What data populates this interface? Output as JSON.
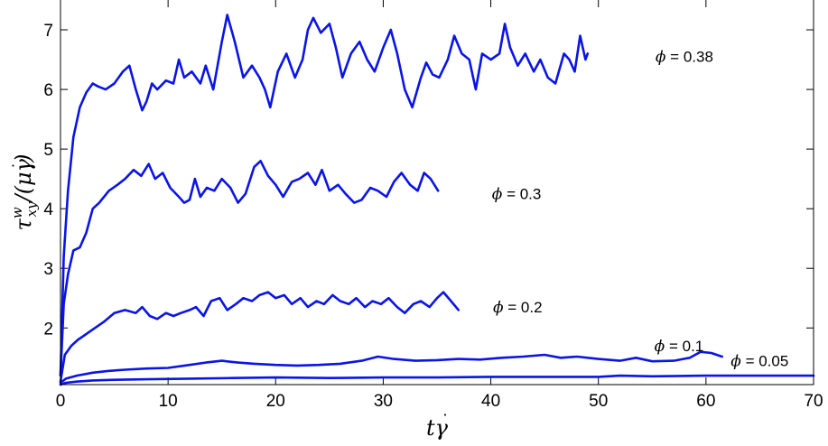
{
  "chart_data": {
    "type": "line",
    "xlabel": "tγ̇",
    "ylabel": "τ^w_xy/(μγ̇)",
    "xlim": [
      0,
      70
    ],
    "ylim": [
      1.05,
      7.5
    ],
    "xticks": [
      0,
      10,
      20,
      30,
      40,
      50,
      60,
      70
    ],
    "yticks": [
      2,
      3,
      4,
      5,
      6,
      7
    ],
    "grid": false,
    "line_color": "#0a14e6",
    "series": [
      {
        "name": "ϕ = 0.38",
        "label_pos": [
          55.3,
          6.55
        ],
        "x": [
          0,
          0.3,
          0.7,
          1.2,
          1.8,
          2.4,
          3,
          3.5,
          4.2,
          5,
          5.8,
          6.4,
          7,
          7.6,
          8,
          8.5,
          9,
          9.8,
          10.5,
          11,
          11.5,
          12.2,
          13,
          13.5,
          14.2,
          15,
          15.5,
          16.2,
          17,
          17.8,
          18.5,
          19,
          19.5,
          20.2,
          21,
          21.8,
          22.5,
          23,
          23.5,
          24.2,
          25,
          25.6,
          26.2,
          27,
          27.8,
          28.5,
          29.2,
          30,
          30.7,
          31.3,
          32,
          32.7,
          33.5,
          34,
          34.6,
          35.2,
          36,
          36.6,
          37.3,
          38,
          38.6,
          39.2,
          40,
          40.8,
          41.3,
          41.8,
          42.5,
          43.2,
          44,
          44.6,
          45.3,
          46,
          46.8,
          47.3,
          47.8,
          48.3,
          48.8,
          49
        ],
        "y": [
          1.2,
          3.2,
          4.3,
          5.2,
          5.7,
          5.95,
          6.1,
          6.05,
          6.0,
          6.1,
          6.3,
          6.4,
          6.0,
          5.65,
          5.8,
          6.1,
          6.0,
          6.15,
          6.1,
          6.5,
          6.2,
          6.3,
          6.1,
          6.4,
          6.0,
          6.8,
          7.25,
          6.8,
          6.2,
          6.4,
          6.2,
          6.0,
          5.7,
          6.3,
          6.6,
          6.2,
          6.5,
          7.0,
          7.2,
          6.95,
          7.1,
          6.7,
          6.2,
          6.6,
          6.8,
          6.5,
          6.3,
          6.7,
          7.0,
          6.6,
          6.0,
          5.7,
          6.2,
          6.45,
          6.25,
          6.2,
          6.5,
          6.9,
          6.6,
          6.5,
          6.0,
          6.6,
          6.5,
          6.6,
          7.1,
          6.7,
          6.4,
          6.6,
          6.3,
          6.5,
          6.2,
          6.1,
          6.6,
          6.5,
          6.3,
          6.9,
          6.5,
          6.6
        ]
      },
      {
        "name": "ϕ = 0.3",
        "label_pos": [
          40.1,
          4.25
        ],
        "x": [
          0,
          0.3,
          0.7,
          1.2,
          1.8,
          2.4,
          3,
          3.6,
          4.5,
          5.3,
          6,
          6.8,
          7.5,
          8.2,
          8.8,
          9.5,
          10.2,
          11,
          11.5,
          12,
          12.5,
          13,
          13.6,
          14.3,
          15,
          15.8,
          16.5,
          17.2,
          18,
          18.6,
          19.3,
          20,
          20.7,
          21.5,
          22.2,
          23,
          23.7,
          24.3,
          25,
          25.8,
          26.5,
          27.3,
          28,
          28.8,
          29.5,
          30.3,
          31,
          31.7,
          32.5,
          33.2,
          33.8,
          34.4,
          35.1
        ],
        "y": [
          1.2,
          2.4,
          2.9,
          3.3,
          3.35,
          3.6,
          4.0,
          4.1,
          4.3,
          4.4,
          4.5,
          4.65,
          4.55,
          4.75,
          4.5,
          4.6,
          4.35,
          4.2,
          4.1,
          4.15,
          4.5,
          4.2,
          4.35,
          4.3,
          4.5,
          4.35,
          4.1,
          4.25,
          4.7,
          4.8,
          4.55,
          4.4,
          4.2,
          4.45,
          4.5,
          4.6,
          4.4,
          4.65,
          4.3,
          4.4,
          4.25,
          4.1,
          4.15,
          4.35,
          4.3,
          4.2,
          4.45,
          4.6,
          4.4,
          4.3,
          4.6,
          4.5,
          4.3
        ]
      },
      {
        "name": "ϕ = 0.2",
        "label_pos": [
          40.2,
          2.35
        ],
        "x": [
          0,
          0.4,
          1,
          1.6,
          2.4,
          3.2,
          4,
          5,
          6,
          7,
          7.6,
          8.3,
          9,
          9.8,
          10.5,
          11.2,
          12,
          12.6,
          13.3,
          14,
          14.8,
          15.5,
          16.3,
          17,
          17.8,
          18.5,
          19.3,
          20,
          20.8,
          21.5,
          22.3,
          23,
          23.8,
          24.5,
          25.3,
          26,
          26.8,
          27.5,
          28.3,
          29,
          29.8,
          30.5,
          31.3,
          32,
          32.8,
          33.5,
          34.3,
          35,
          35.6,
          36.3,
          37
        ],
        "y": [
          1.1,
          1.55,
          1.7,
          1.8,
          1.9,
          2.0,
          2.1,
          2.25,
          2.3,
          2.25,
          2.35,
          2.2,
          2.15,
          2.25,
          2.2,
          2.25,
          2.3,
          2.35,
          2.2,
          2.45,
          2.5,
          2.3,
          2.4,
          2.5,
          2.45,
          2.55,
          2.6,
          2.5,
          2.55,
          2.4,
          2.5,
          2.35,
          2.45,
          2.4,
          2.55,
          2.45,
          2.4,
          2.5,
          2.35,
          2.45,
          2.4,
          2.5,
          2.35,
          2.25,
          2.4,
          2.45,
          2.35,
          2.5,
          2.6,
          2.45,
          2.3
        ]
      },
      {
        "name": "ϕ = 0.1",
        "label_pos": [
          55.2,
          1.7
        ],
        "x": [
          0,
          0.5,
          1.5,
          3,
          4.5,
          6,
          8,
          10,
          12,
          13.5,
          15,
          16.5,
          18,
          20,
          22,
          24,
          26,
          28,
          29.5,
          31,
          33,
          35,
          37,
          39,
          41,
          43,
          45,
          46.5,
          48,
          50,
          52,
          53.5,
          55,
          57,
          58.5,
          59.5,
          60.5,
          61.5
        ],
        "y": [
          1.08,
          1.15,
          1.2,
          1.25,
          1.28,
          1.3,
          1.32,
          1.33,
          1.38,
          1.42,
          1.45,
          1.42,
          1.4,
          1.38,
          1.37,
          1.38,
          1.4,
          1.45,
          1.52,
          1.48,
          1.45,
          1.46,
          1.48,
          1.47,
          1.5,
          1.52,
          1.55,
          1.5,
          1.52,
          1.48,
          1.45,
          1.5,
          1.44,
          1.45,
          1.5,
          1.6,
          1.58,
          1.52
        ]
      },
      {
        "name": "ϕ = 0.05",
        "label_pos": [
          62.3,
          1.45
        ],
        "x": [
          0,
          0.5,
          1.5,
          3,
          5,
          8,
          12,
          16,
          20,
          25,
          30,
          35,
          40,
          45,
          50,
          52,
          55,
          60,
          65,
          70
        ],
        "y": [
          1.05,
          1.08,
          1.1,
          1.12,
          1.13,
          1.14,
          1.15,
          1.16,
          1.17,
          1.16,
          1.17,
          1.17,
          1.18,
          1.18,
          1.18,
          1.2,
          1.19,
          1.2,
          1.2,
          1.2
        ]
      }
    ]
  }
}
